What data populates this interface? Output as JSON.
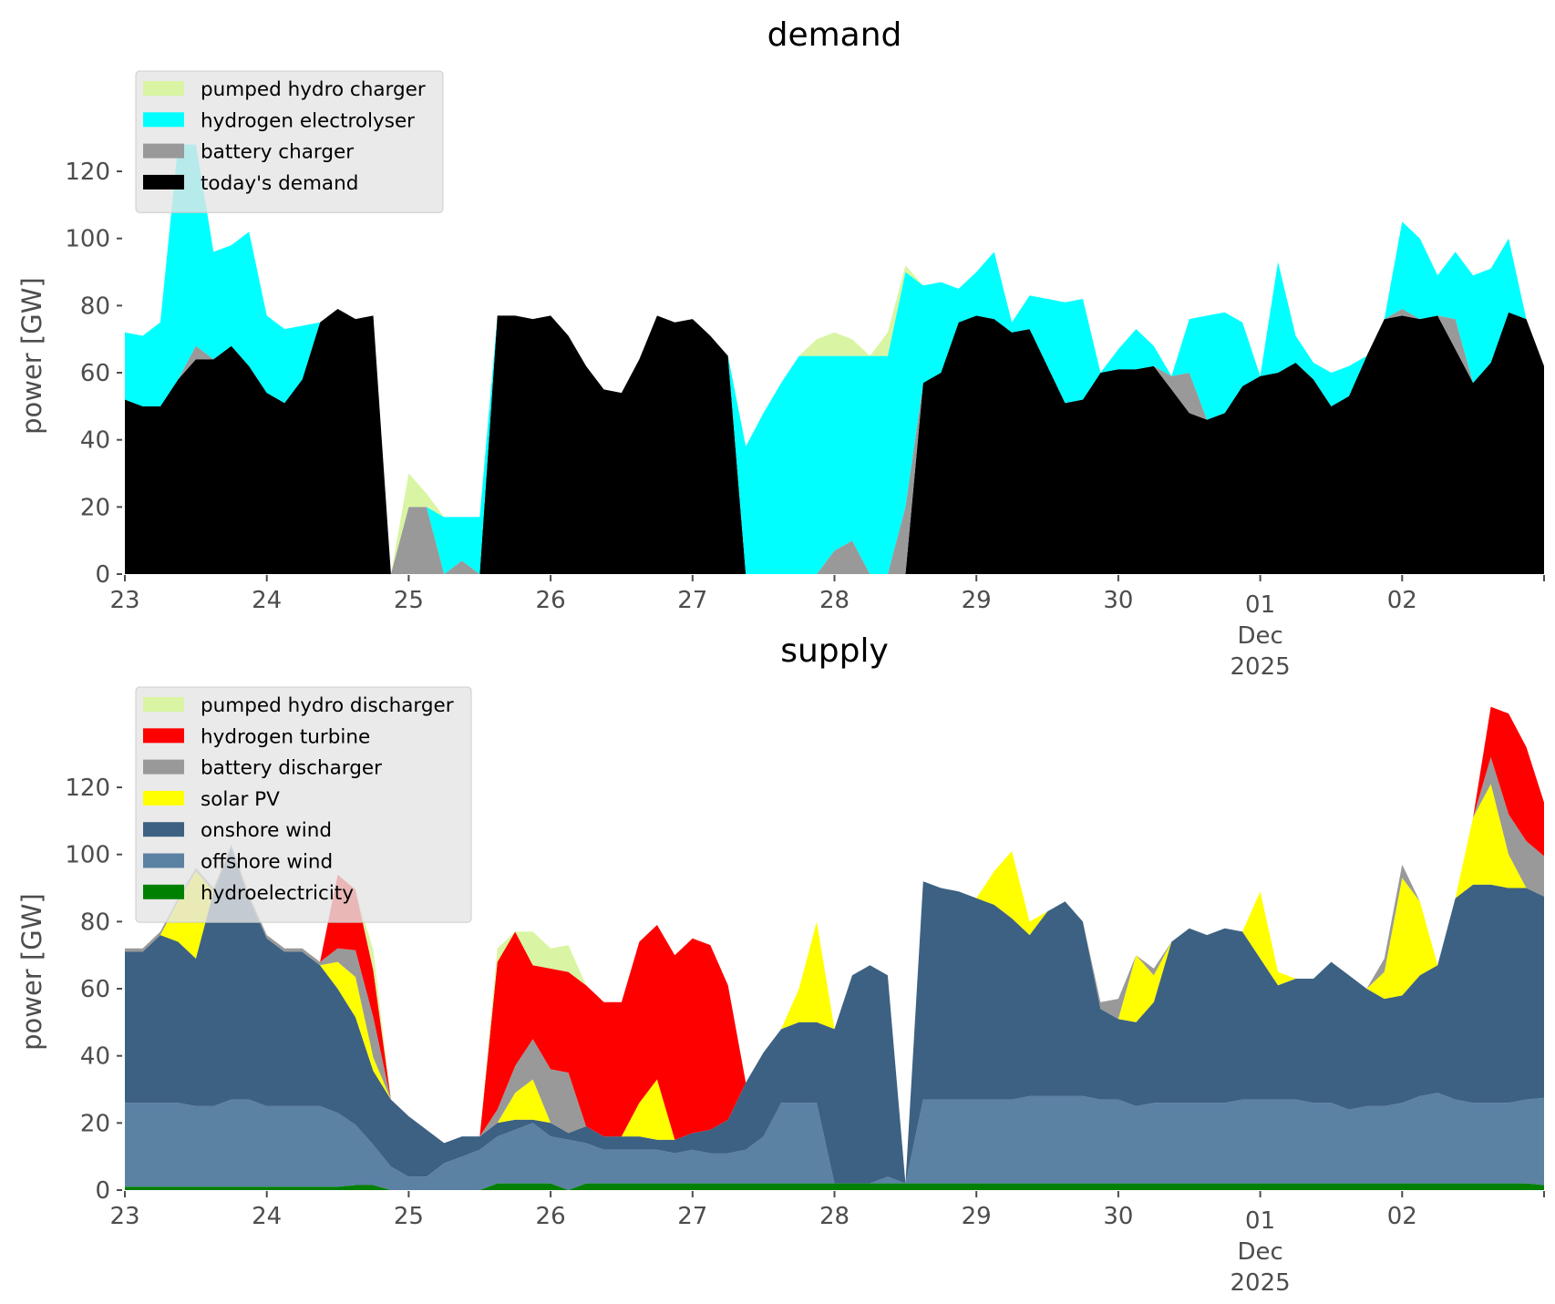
{
  "chart_data": [
    {
      "id": "demand",
      "type": "area",
      "stacked": true,
      "title": "demand",
      "xlabel": "",
      "ylabel": "power [GW]",
      "ylim": [
        0,
        135
      ],
      "yticks": [
        0,
        20,
        40,
        60,
        80,
        100,
        120
      ],
      "xlim_days": [
        0,
        10
      ],
      "xticks": [
        {
          "day": 0,
          "label": "23"
        },
        {
          "day": 1,
          "label": "24"
        },
        {
          "day": 2,
          "label": "25"
        },
        {
          "day": 3,
          "label": "26"
        },
        {
          "day": 4,
          "label": "27"
        },
        {
          "day": 5,
          "label": "28"
        },
        {
          "day": 6,
          "label": "29"
        },
        {
          "day": 7,
          "label": "30"
        },
        {
          "day": 8,
          "label": "01",
          "sub": [
            "Dec",
            "2025"
          ]
        },
        {
          "day": 9,
          "label": "02"
        },
        {
          "day": 10,
          "label": ""
        }
      ],
      "x_step_hours": 3,
      "grid": false,
      "legend_placement": "upper-left",
      "series": [
        {
          "name": "today's demand",
          "color": "#000000",
          "values": [
            52,
            50,
            50,
            58,
            64,
            64,
            68,
            62,
            54,
            51,
            58,
            75,
            79,
            76,
            77,
            0,
            0,
            0,
            0,
            0,
            0,
            77,
            77,
            76,
            77,
            71,
            62,
            55,
            54,
            64,
            77,
            75,
            76,
            71,
            65,
            0,
            0,
            0,
            0,
            0,
            0,
            0,
            0,
            0,
            0,
            57,
            60,
            75,
            77,
            76,
            72,
            73,
            62,
            51,
            52,
            60,
            61,
            61,
            62,
            55,
            48,
            46,
            48,
            56,
            59,
            60,
            63,
            58,
            50,
            53,
            65,
            76,
            77,
            76,
            77,
            67,
            57,
            63,
            78,
            76,
            62
          ]
        },
        {
          "name": "battery charger",
          "color": "#999999",
          "values": [
            0,
            0,
            0,
            0,
            4,
            0,
            0,
            0,
            0,
            0,
            0,
            0,
            0,
            0,
            0,
            0,
            20,
            20,
            0,
            4,
            0,
            0,
            0,
            0,
            0,
            0,
            0,
            0,
            0,
            0,
            0,
            0,
            0,
            0,
            0,
            0,
            0,
            0,
            0,
            0,
            7,
            10,
            0,
            0,
            20,
            0,
            0,
            0,
            0,
            0,
            0,
            0,
            0,
            0,
            0,
            0,
            0,
            0,
            0,
            4,
            12,
            0,
            0,
            0,
            0,
            0,
            0,
            0,
            0,
            0,
            0,
            0,
            2,
            0,
            0,
            9,
            0,
            0,
            0,
            0,
            0
          ]
        },
        {
          "name": "hydrogen electrolyser",
          "color": "#00ffff",
          "values": [
            20,
            21,
            25,
            70,
            60,
            32,
            30,
            40,
            23,
            22,
            16,
            0,
            0,
            0,
            0,
            0,
            0,
            0,
            17,
            13,
            17,
            0,
            0,
            0,
            0,
            0,
            0,
            0,
            0,
            0,
            0,
            0,
            0,
            0,
            0,
            38,
            48,
            57,
            65,
            65,
            58,
            55,
            65,
            65,
            70,
            29,
            27,
            10,
            13,
            20,
            3,
            10,
            20,
            30,
            30,
            0,
            6,
            12,
            6,
            0,
            16,
            31,
            30,
            19,
            0,
            33,
            8,
            5,
            10,
            9,
            0,
            0,
            26,
            24,
            12,
            20,
            32,
            28,
            22,
            0,
            0
          ]
        },
        {
          "name": "pumped hydro charger",
          "color": "#d9f5a3",
          "values": [
            0,
            0,
            0,
            0,
            0,
            0,
            0,
            0,
            0,
            0,
            0,
            0,
            0,
            0,
            0,
            0,
            10,
            4,
            0,
            0,
            0,
            0,
            0,
            0,
            0,
            0,
            0,
            0,
            0,
            0,
            0,
            0,
            0,
            0,
            0,
            0,
            0,
            0,
            0,
            5,
            7,
            5,
            0,
            7,
            2,
            0,
            0,
            0,
            0,
            0,
            0,
            0,
            0,
            0,
            0,
            0,
            0,
            0,
            0,
            0,
            0,
            0,
            0,
            0,
            0,
            0,
            0,
            0,
            0,
            0,
            0,
            0,
            0,
            0,
            0,
            0,
            0,
            0,
            0,
            0,
            0
          ]
        }
      ]
    },
    {
      "id": "supply",
      "type": "area",
      "stacked": true,
      "title": "supply",
      "xlabel": "",
      "ylabel": "power [GW]",
      "ylim": [
        0,
        135
      ],
      "yticks": [
        0,
        20,
        40,
        60,
        80,
        100,
        120
      ],
      "xlim_days": [
        0,
        10
      ],
      "xticks": [
        {
          "day": 0,
          "label": "23"
        },
        {
          "day": 1,
          "label": "24"
        },
        {
          "day": 2,
          "label": "25"
        },
        {
          "day": 3,
          "label": "26"
        },
        {
          "day": 4,
          "label": "27"
        },
        {
          "day": 5,
          "label": "28"
        },
        {
          "day": 6,
          "label": "29"
        },
        {
          "day": 7,
          "label": "30"
        },
        {
          "day": 8,
          "label": "01",
          "sub": [
            "Dec",
            "2025"
          ]
        },
        {
          "day": 9,
          "label": "02"
        },
        {
          "day": 10,
          "label": ""
        }
      ],
      "x_step_hours": 3,
      "grid": false,
      "legend_placement": "upper-left",
      "series": [
        {
          "name": "hydroelectricity",
          "color": "#008000",
          "values": [
            1,
            1,
            1,
            1,
            1,
            1,
            1,
            1,
            1,
            1,
            1,
            1,
            1,
            1.5,
            1.5,
            0,
            0,
            0,
            0,
            0,
            0,
            2,
            2,
            2,
            2,
            0,
            2,
            2,
            2,
            2,
            2,
            2,
            2,
            2,
            2,
            2,
            2,
            2,
            2,
            2,
            2,
            2,
            2,
            2,
            2,
            2,
            2,
            2,
            2,
            2,
            2,
            2,
            2,
            2,
            2,
            2,
            2,
            2,
            2,
            2,
            2,
            2,
            2,
            2,
            2,
            2,
            2,
            2,
            2,
            2,
            2,
            2,
            2,
            2,
            2,
            2,
            2,
            2,
            2,
            2,
            1.5
          ]
        },
        {
          "name": "offshore wind",
          "color": "#5b81a3",
          "values": [
            25,
            25,
            25,
            25,
            24,
            24,
            26,
            26,
            24,
            24,
            24,
            24,
            22,
            18,
            12,
            7,
            4,
            4,
            8,
            10,
            12,
            14,
            16,
            18,
            14,
            15,
            12,
            10,
            10,
            10,
            10,
            9,
            10,
            9,
            9,
            10,
            14,
            24,
            24,
            24,
            0,
            0,
            0,
            2,
            0,
            25,
            25,
            25,
            25,
            25,
            25,
            26,
            26,
            26,
            26,
            25,
            25,
            23,
            24,
            24,
            24,
            24,
            24,
            25,
            25,
            25,
            25,
            24,
            24,
            22,
            23,
            23,
            24,
            26,
            27,
            25,
            24,
            24,
            24,
            25,
            26
          ]
        },
        {
          "name": "onshore wind",
          "color": "#3d6182",
          "values": [
            45,
            45,
            50,
            48,
            44,
            64,
            75,
            60,
            50,
            46,
            46,
            42,
            37,
            32,
            22,
            20,
            18,
            14,
            6,
            6,
            4,
            4,
            3,
            1,
            4,
            2,
            5,
            4,
            4,
            4,
            3,
            4,
            5,
            7,
            10,
            20,
            25,
            22,
            24,
            24,
            46,
            62,
            65,
            60,
            0,
            65,
            63,
            62,
            60,
            58,
            54,
            48,
            55,
            58,
            52,
            27,
            24,
            25,
            30,
            48,
            52,
            50,
            52,
            50,
            42,
            34,
            36,
            37,
            42,
            40,
            35,
            32,
            32,
            36,
            38,
            60,
            65,
            65,
            64,
            63,
            60
          ]
        },
        {
          "name": "solar PV",
          "color": "#ffff00",
          "values": [
            0,
            0,
            0,
            12,
            26,
            0,
            0,
            0,
            0,
            0,
            0,
            0,
            8,
            12,
            4,
            0,
            0,
            0,
            0,
            0,
            0,
            0,
            8,
            12,
            0,
            0,
            0,
            0,
            0,
            10,
            18,
            0,
            0,
            0,
            0,
            0,
            0,
            0,
            10,
            30,
            0,
            0,
            0,
            0,
            0,
            0,
            0,
            0,
            0,
            10,
            20,
            4,
            0,
            0,
            0,
            0,
            0,
            20,
            8,
            0,
            0,
            0,
            0,
            0,
            20,
            4,
            0,
            0,
            0,
            0,
            0,
            8,
            35,
            22,
            0,
            0,
            20,
            30,
            10,
            0,
            0
          ]
        },
        {
          "name": "battery discharger",
          "color": "#999999",
          "values": [
            1,
            1,
            1,
            1,
            1,
            1,
            1,
            1,
            1,
            1,
            1,
            1,
            4,
            8,
            12,
            0,
            0,
            0,
            0,
            0,
            0,
            4,
            8,
            12,
            16,
            18,
            0,
            0,
            0,
            0,
            0,
            0,
            0,
            0,
            0,
            0,
            0,
            0,
            0,
            0,
            0,
            0,
            0,
            0,
            0,
            0,
            0,
            0,
            0,
            0,
            0,
            0,
            0,
            0,
            0,
            2,
            6,
            0,
            2,
            0,
            0,
            0,
            0,
            0,
            0,
            0,
            0,
            0,
            0,
            0,
            0,
            4,
            4,
            0,
            0,
            0,
            0,
            8,
            12,
            14,
            12
          ]
        },
        {
          "name": "hydrogen turbine",
          "color": "#ff0000",
          "values": [
            0,
            0,
            0,
            0,
            0,
            0,
            0,
            0,
            0,
            0,
            0,
            0,
            22,
            18,
            14,
            0,
            0,
            0,
            0,
            0,
            0,
            44,
            40,
            22,
            30,
            30,
            42,
            40,
            40,
            48,
            46,
            55,
            58,
            55,
            40,
            0,
            0,
            0,
            0,
            0,
            0,
            0,
            0,
            0,
            0,
            0,
            0,
            0,
            0,
            0,
            0,
            0,
            0,
            0,
            0,
            0,
            0,
            0,
            0,
            0,
            0,
            0,
            0,
            0,
            0,
            0,
            0,
            0,
            0,
            0,
            0,
            0,
            0,
            0,
            0,
            0,
            0,
            15,
            30,
            28,
            16
          ]
        },
        {
          "name": "pumped hydro discharger",
          "color": "#d9f5a3",
          "values": [
            0,
            0,
            0,
            0,
            0,
            0,
            0,
            0,
            0,
            0,
            0,
            0,
            0,
            0,
            6,
            0,
            0,
            0,
            0,
            0,
            0,
            4,
            0,
            10,
            6,
            8,
            0,
            0,
            0,
            0,
            0,
            0,
            0,
            0,
            0,
            0,
            0,
            0,
            0,
            0,
            0,
            0,
            0,
            0,
            0,
            0,
            0,
            0,
            0,
            0,
            0,
            0,
            0,
            0,
            0,
            0,
            0,
            0,
            0,
            0,
            0,
            0,
            0,
            0,
            0,
            0,
            0,
            0,
            0,
            0,
            0,
            0,
            0,
            0,
            0,
            0,
            0,
            0,
            0,
            0,
            0
          ]
        }
      ]
    }
  ],
  "legends": {
    "demand": [
      "pumped hydro charger",
      "hydrogen electrolyser",
      "battery charger",
      "today's demand"
    ],
    "supply": [
      "pumped hydro discharger",
      "hydrogen turbine",
      "battery discharger",
      "solar PV",
      "onshore wind",
      "offshore wind",
      "hydroelectricity"
    ]
  }
}
